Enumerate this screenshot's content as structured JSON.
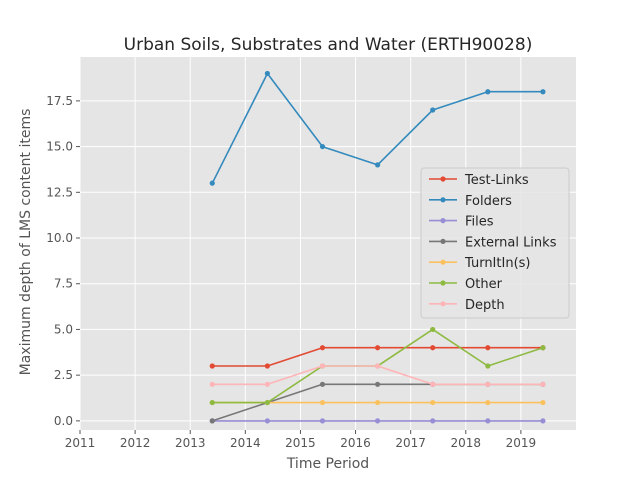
{
  "chart_data": {
    "type": "line",
    "title": "Urban Soils, Substrates and Water (ERTH90028)",
    "xlabel": "Time Period",
    "ylabel": "Maximum depth of LMS content items",
    "xlim": [
      2011,
      2020
    ],
    "ylim": [
      -0.5,
      19.9
    ],
    "x": [
      2013.4,
      2014.4,
      2015.4,
      2016.4,
      2017.4,
      2018.4,
      2019.4
    ],
    "xticks": [
      {
        "value": 2011,
        "label": "2011"
      },
      {
        "value": 2012,
        "label": "2012"
      },
      {
        "value": 2013,
        "label": "2013"
      },
      {
        "value": 2014,
        "label": "2014"
      },
      {
        "value": 2015,
        "label": "2015"
      },
      {
        "value": 2016,
        "label": "2016"
      },
      {
        "value": 2017,
        "label": "2017"
      },
      {
        "value": 2018,
        "label": "2018"
      },
      {
        "value": 2019,
        "label": "2019"
      }
    ],
    "yticks": [
      {
        "value": 0,
        "label": "0.0"
      },
      {
        "value": 2.5,
        "label": "2.5"
      },
      {
        "value": 5,
        "label": "5.0"
      },
      {
        "value": 7.5,
        "label": "7.5"
      },
      {
        "value": 10,
        "label": "10.0"
      },
      {
        "value": 12.5,
        "label": "12.5"
      },
      {
        "value": 15,
        "label": "15.0"
      },
      {
        "value": 17.5,
        "label": "17.5"
      }
    ],
    "grid": true,
    "legend_position": "center-right",
    "series": [
      {
        "name": "Test-Links",
        "color": "#E24A33",
        "values": [
          3,
          3,
          4,
          4,
          4,
          4,
          4
        ]
      },
      {
        "name": "Folders",
        "color": "#348ABD",
        "values": [
          13,
          19,
          15,
          14,
          17,
          18,
          18
        ]
      },
      {
        "name": "Files",
        "color": "#988ED5",
        "values": [
          0,
          0,
          0,
          0,
          0,
          0,
          0
        ]
      },
      {
        "name": "External Links",
        "color": "#777777",
        "values": [
          0,
          1,
          2,
          2,
          2,
          2,
          2
        ]
      },
      {
        "name": "TurnItIn(s)",
        "color": "#FBC15E",
        "values": [
          1,
          1,
          1,
          1,
          1,
          1,
          1
        ]
      },
      {
        "name": "Other",
        "color": "#8EBA42",
        "values": [
          1,
          1,
          3,
          3,
          5,
          3,
          4
        ]
      },
      {
        "name": "Depth",
        "color": "#FFB5B8",
        "values": [
          2,
          2,
          3,
          3,
          2,
          2,
          2
        ]
      }
    ]
  },
  "colors": {
    "plot_background": "#E5E5E5",
    "grid": "#FFFFFF",
    "text": "#262626",
    "tick_text": "#555555"
  }
}
